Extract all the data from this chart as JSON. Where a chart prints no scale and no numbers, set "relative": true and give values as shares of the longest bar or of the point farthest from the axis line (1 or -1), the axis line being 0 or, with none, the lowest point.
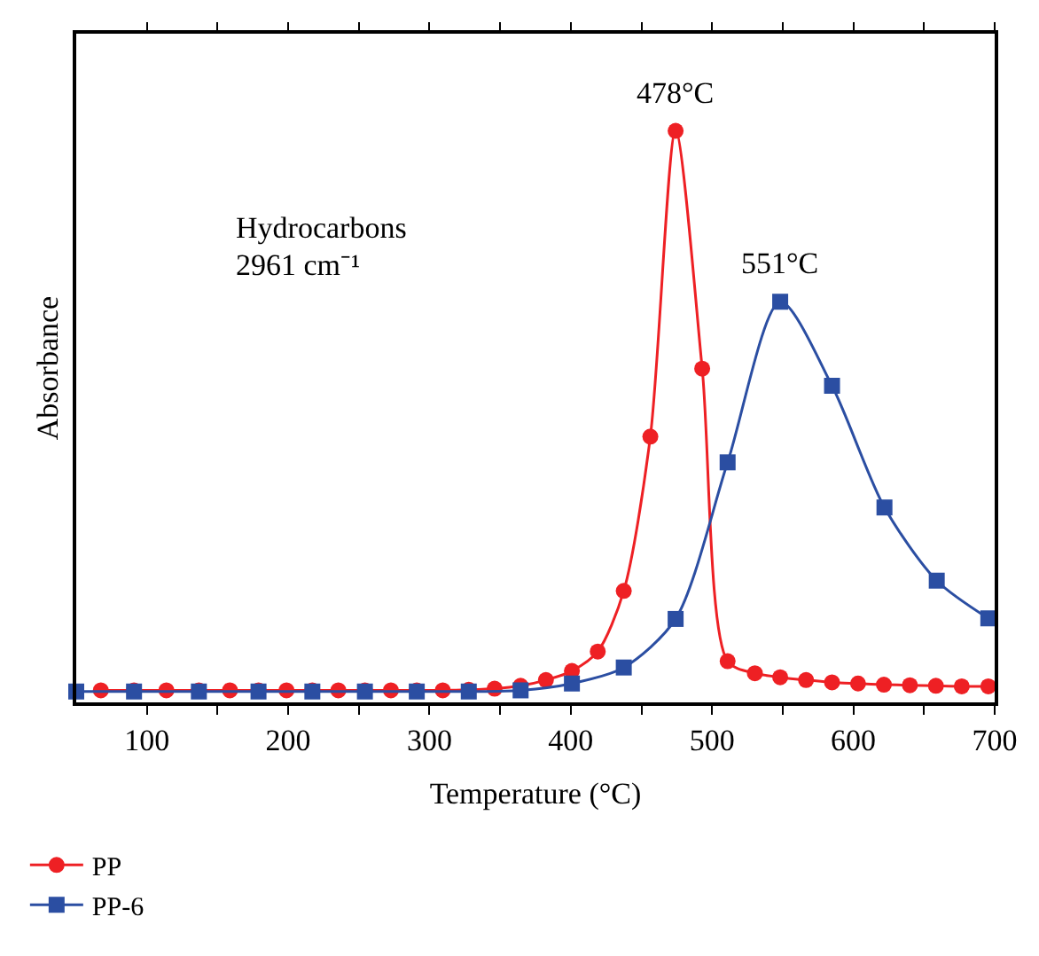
{
  "chart_data": {
    "type": "line",
    "xlabel": "Temperature (°C)",
    "ylabel": "Absorbance",
    "relative": true,
    "xlim": [
      50,
      700
    ],
    "xticks": [
      100,
      {
        "value": 150,
        "label": null
      },
      200,
      {
        "value": 250,
        "label": null
      },
      300,
      {
        "value": 350,
        "label": null
      },
      400,
      {
        "value": 450,
        "label": null
      },
      500,
      {
        "value": 550,
        "label": null
      },
      600,
      {
        "value": 650,
        "label": null
      },
      700
    ],
    "line_style": "solid",
    "legend": "bottom left",
    "series": [
      {
        "name": "PP",
        "color": "#ee2024",
        "marker": "circle",
        "x": [
          67.4,
          90.9,
          113.8,
          136.8,
          158.8,
          179,
          198.8,
          217.1,
          235.5,
          254.3,
          272.7,
          291,
          309.4,
          327.8,
          346.1,
          364.5,
          382.4,
          400.8,
          419.1,
          437.5,
          456.3,
          474.2,
          493,
          511,
          530.3,
          548.2,
          566.5,
          584.9,
          603.3,
          621.6,
          640,
          658.4,
          676.7,
          695.5
        ],
        "values": [
          0.021,
          0.021,
          0.021,
          0.021,
          0.021,
          0.021,
          0.021,
          0.021,
          0.021,
          0.021,
          0.021,
          0.021,
          0.021,
          0.022,
          0.024,
          0.029,
          0.039,
          0.055,
          0.089,
          0.195,
          0.465,
          1.0,
          0.584,
          0.072,
          0.051,
          0.044,
          0.039,
          0.035,
          0.033,
          0.031,
          0.03,
          0.029,
          0.028,
          0.028
        ]
      },
      {
        "name": "PP-6",
        "color": "#2b4ea2",
        "marker": "square",
        "x": [
          50,
          90.9,
          136.8,
          179,
          217.1,
          254.3,
          291,
          327.8,
          364.5,
          400.8,
          437.5,
          474.2,
          511,
          548.2,
          584.9,
          622,
          659,
          695.5
        ],
        "values": [
          0.019,
          0.019,
          0.019,
          0.019,
          0.019,
          0.019,
          0.019,
          0.019,
          0.021,
          0.033,
          0.061,
          0.146,
          0.42,
          0.701,
          0.554,
          0.341,
          0.213,
          0.147
        ]
      }
    ],
    "annotations": [
      {
        "text": "478°C",
        "x": 474.2,
        "y": 1.0
      },
      {
        "text": "551°C",
        "x": 548.2,
        "y": 0.701
      },
      "Hydrocarbons",
      "2961 cm⁻¹"
    ]
  }
}
